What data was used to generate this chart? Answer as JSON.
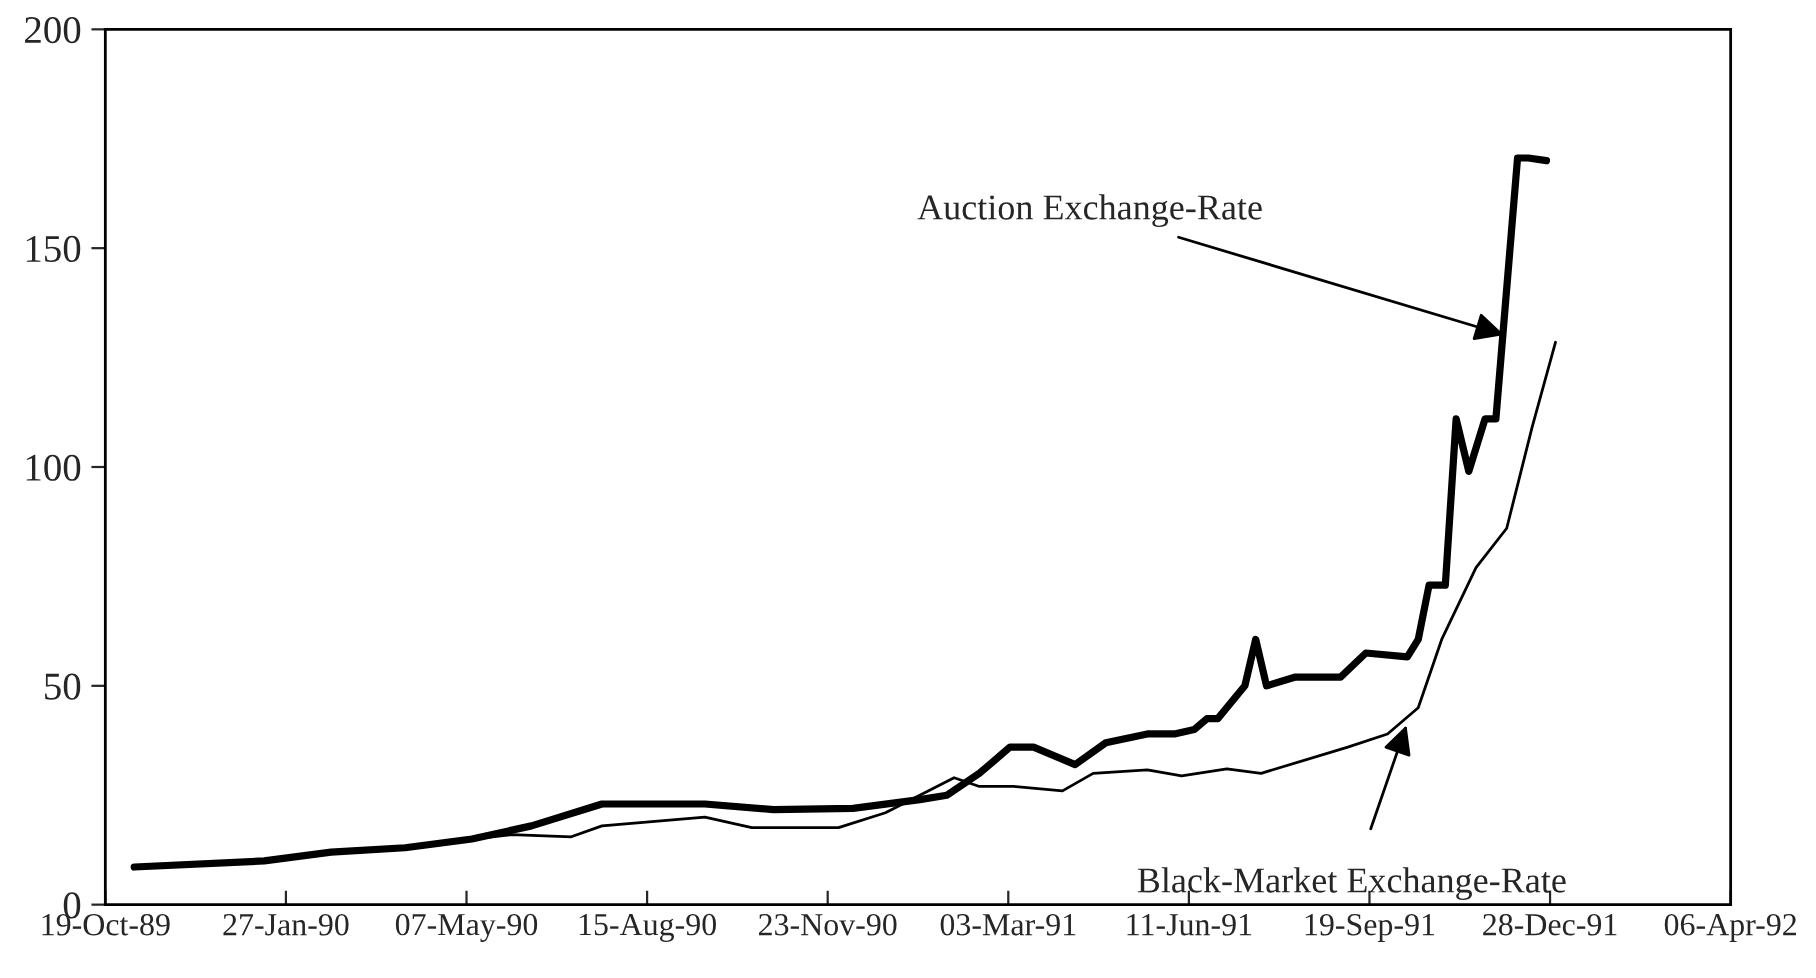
{
  "chart_data": {
    "type": "line",
    "xlim": [
      "1989-10-19",
      "1992-04-06"
    ],
    "xticks": [
      {
        "value": "1989-10-19",
        "label": "19-Oct-89"
      },
      {
        "value": "1990-01-27",
        "label": "27-Jan-90"
      },
      {
        "value": "1990-05-07",
        "label": "07-May-90"
      },
      {
        "value": "1990-08-15",
        "label": "15-Aug-90"
      },
      {
        "value": "1990-11-23",
        "label": "23-Nov-90"
      },
      {
        "value": "1991-03-03",
        "label": "03-Mar-91"
      },
      {
        "value": "1991-06-11",
        "label": "11-Jun-91"
      },
      {
        "value": "1991-09-19",
        "label": "19-Sep-91"
      },
      {
        "value": "1991-12-28",
        "label": "28-Dec-91"
      },
      {
        "value": "1992-04-06",
        "label": "06-Apr-92"
      }
    ],
    "ylim": [
      0,
      200
    ],
    "yticks": [
      0,
      50,
      100,
      150,
      200
    ],
    "grid": false,
    "legend": false,
    "marker": "none",
    "line_style": "solid",
    "series": [
      {
        "color": "#000000",
        "x": [
          "1989-11-04",
          "1990-01-15",
          "1990-02-21",
          "1990-04-03",
          "1990-05-10",
          "1990-06-12",
          "1990-07-21",
          "1990-09-16",
          "1990-10-24",
          "1990-12-07",
          "1991-01-13",
          "1991-01-28",
          "1991-02-15",
          "1991-03-04",
          "1991-03-17",
          "1991-04-09",
          "1991-04-26",
          "1991-05-19",
          "1991-06-03",
          "1991-06-14",
          "1991-06-21",
          "1991-06-27",
          "1991-07-12",
          "1991-07-18",
          "1991-07-24",
          "1991-08-09",
          "1991-09-03",
          "1991-09-17",
          "1991-10-10",
          "1991-10-16",
          "1991-10-22",
          "1991-10-31",
          "1991-11-06",
          "1991-11-13",
          "1991-11-22",
          "1991-11-28",
          "1991-12-10",
          "1991-12-16",
          "1991-12-26"
        ],
        "values": [
          8.6,
          10,
          12,
          13,
          15,
          18,
          23,
          23,
          21.7,
          22,
          24,
          25,
          30,
          36,
          36,
          32,
          37,
          39,
          39,
          40,
          42.5,
          42.5,
          50,
          60.6,
          50,
          52,
          52,
          57.5,
          56.6,
          60.6,
          73,
          73,
          111,
          99,
          111,
          111,
          170.6,
          170.6,
          170
        ]
      },
      {
        "color": "#000000",
        "x": [
          "1989-11-04",
          "1990-01-15",
          "1990-02-21",
          "1990-04-03",
          "1990-05-10",
          "1990-06-01",
          "1990-07-04",
          "1990-07-21",
          "1990-09-16",
          "1990-10-12",
          "1990-11-29",
          "1990-12-25",
          "1991-02-01",
          "1991-02-15",
          "1991-03-06",
          "1991-04-02",
          "1991-04-19",
          "1991-05-19",
          "1991-06-07",
          "1991-07-02",
          "1991-07-21",
          "1991-09-07",
          "1991-09-29",
          "1991-10-16",
          "1991-10-29",
          "1991-11-17",
          "1991-12-04",
          "1991-12-18",
          "1991-12-31"
        ],
        "values": [
          8.6,
          10,
          12,
          13,
          15,
          16,
          15.5,
          18,
          20,
          17.6,
          17.6,
          21,
          29,
          27,
          27,
          26,
          30,
          30.8,
          29.4,
          31,
          30,
          36,
          39,
          45,
          60.6,
          77,
          86,
          109,
          128.5
        ]
      }
    ],
    "annotations": [
      {
        "text": "Auction Exchange-Rate",
        "x": "1991-12-04",
        "y": 130
      },
      {
        "text": "Black-Market Exchange-Rate",
        "x": "1991-10-10",
        "y": 41.6
      }
    ]
  }
}
